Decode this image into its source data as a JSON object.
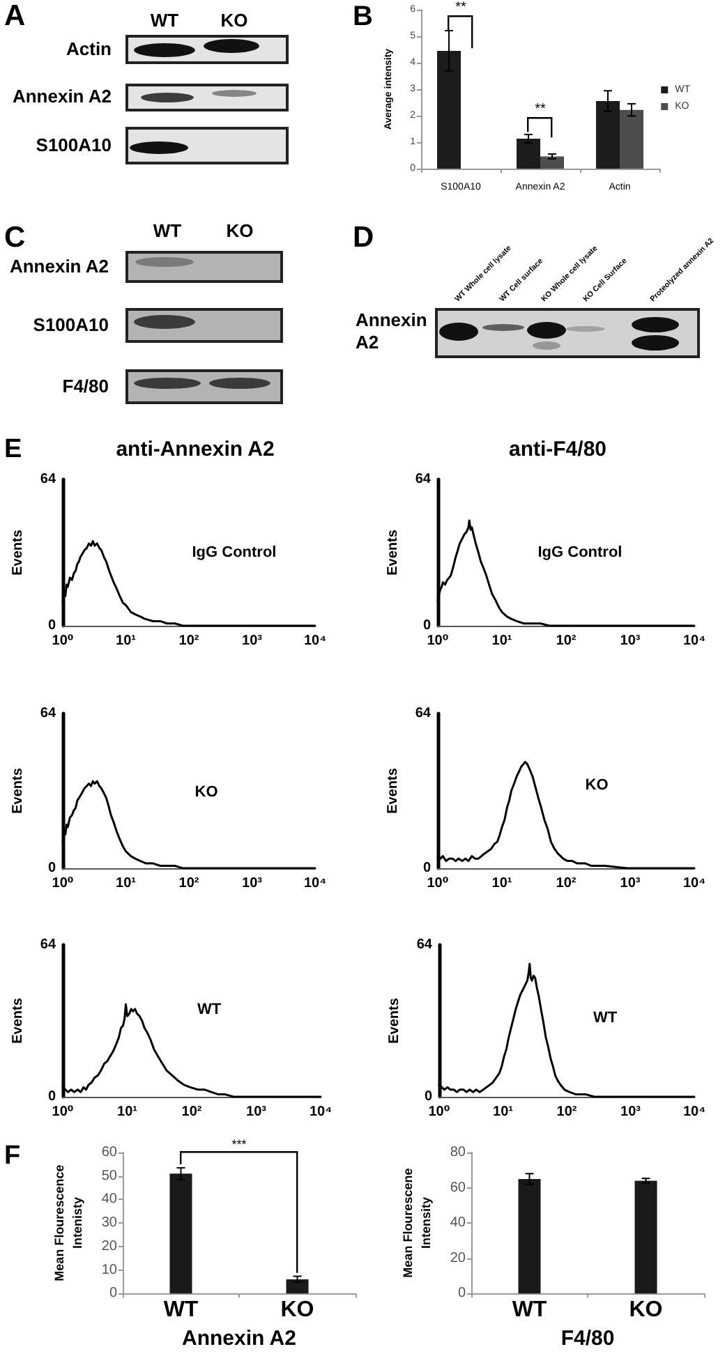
{
  "chart_data": [
    {
      "type": "other",
      "title": "A",
      "categories": [
        "WT",
        "KO"
      ],
      "y_categories": [
        "Actin",
        "Annexin A2",
        "S100A10"
      ]
    },
    {
      "type": "bar",
      "title": "B",
      "categories": [
        "S100A10",
        "Annexin A2",
        "Actin"
      ],
      "ylabel": "Average intensity",
      "ylim": [
        0,
        6
      ],
      "yticks": [
        0,
        1,
        2,
        3,
        4,
        5,
        6
      ],
      "legend": "right",
      "series": [
        {
          "name": "WT",
          "color": "#1c1c1c",
          "values": [
            4.45,
            1.13,
            2.55
          ],
          "errors": [
            0.76,
            0.16,
            0.39
          ]
        },
        {
          "name": "KO",
          "color": "#4d4d4d",
          "values": [
            0,
            0.46,
            2.22
          ],
          "errors": [
            null,
            0.09,
            0.23
          ]
        }
      ],
      "annotations": [
        "**",
        "**"
      ]
    },
    {
      "type": "other",
      "title": "C",
      "categories": [
        "WT",
        "KO"
      ],
      "y_categories": [
        "Annexin A2",
        "S100A10",
        "F4/80"
      ]
    },
    {
      "type": "other",
      "title": "D",
      "categories": [
        "WT Whole cell lysate",
        "WT Cell surface",
        "KO Whole cell lysate",
        "KO Cell Surface",
        "Proteolyzed annexin A2"
      ],
      "y_categories": [
        "Annexin A2"
      ]
    },
    {
      "type": "line",
      "title": "E",
      "subtitle": "anti-Annexin A2",
      "ylabel": "Events",
      "log": "x",
      "xlim": [
        1,
        10000
      ],
      "xticks": [
        {
          "value": 1,
          "label": "10⁰"
        },
        {
          "value": 10,
          "label": "10¹"
        },
        {
          "value": 100,
          "label": "10²"
        },
        {
          "value": 1000,
          "label": "10³"
        },
        {
          "value": 10000,
          "label": "10⁴"
        }
      ],
      "ylim": [
        0,
        64
      ],
      "yticks": [
        0,
        64
      ],
      "color": "#000000",
      "x": [
        1,
        1.05,
        1.1,
        1.15,
        1.2,
        1.3,
        1.4,
        1.5,
        1.6,
        1.7,
        1.8,
        1.9,
        2.0,
        2.2,
        2.4,
        2.6,
        2.8,
        3.0,
        3.2,
        3.5,
        3.8,
        4.1,
        4.5,
        4.9,
        5.3,
        5.8,
        6.4,
        7.2,
        8,
        9,
        10,
        12,
        14,
        17,
        20,
        27,
        35,
        45,
        60,
        80,
        1000,
        10000
      ],
      "values": [
        11,
        15,
        13,
        18,
        17,
        21,
        20,
        23,
        24,
        27,
        28,
        30,
        31,
        33,
        34,
        36,
        35,
        37,
        35,
        36,
        34,
        33,
        30,
        28,
        25,
        22,
        19,
        16,
        13,
        10,
        9,
        6,
        5,
        4,
        3,
        2,
        2,
        1,
        1,
        0,
        0,
        0
      ],
      "annotations": [
        "IgG Control"
      ]
    },
    {
      "type": "line",
      "subtitle": "anti-F4/80",
      "ylabel": "Events",
      "log": "x",
      "xlim": [
        1,
        10000
      ],
      "xticks": [
        {
          "value": 1,
          "label": "10⁰"
        },
        {
          "value": 10,
          "label": "10¹"
        },
        {
          "value": 100,
          "label": "10²"
        },
        {
          "value": 1000,
          "label": "10³"
        },
        {
          "value": 10000,
          "label": "10⁴"
        }
      ],
      "ylim": [
        0,
        64
      ],
      "yticks": [
        0,
        64
      ],
      "color": "#000000",
      "x": [
        1,
        1.05,
        1.1,
        1.15,
        1.2,
        1.3,
        1.4,
        1.5,
        1.6,
        1.75,
        1.9,
        2.05,
        2.2,
        2.4,
        2.6,
        2.8,
        3.0,
        3.1,
        3.25,
        3.4,
        3.6,
        3.9,
        4.3,
        4.7,
        5.2,
        5.7,
        6.3,
        7,
        8,
        9,
        10,
        12,
        14,
        17,
        22,
        30,
        40,
        55,
        75,
        100,
        1000,
        10000
      ],
      "values": [
        11,
        14,
        16,
        17,
        19,
        18,
        20,
        21,
        22,
        26,
        30,
        33,
        36,
        38,
        40,
        41,
        43,
        46,
        42,
        43,
        40,
        36,
        32,
        28,
        25,
        22,
        18,
        14,
        11,
        8,
        6,
        4,
        3,
        2,
        1,
        1,
        1,
        0,
        0,
        0,
        0,
        0
      ],
      "annotations": [
        "IgG Control"
      ]
    },
    {
      "type": "line",
      "ylabel": "Events",
      "log": "x",
      "xlim": [
        1,
        10000
      ],
      "xticks": [
        {
          "value": 1,
          "label": "10⁰"
        },
        {
          "value": 10,
          "label": "10¹"
        },
        {
          "value": 100,
          "label": "10²"
        },
        {
          "value": 1000,
          "label": "10³"
        },
        {
          "value": 10000,
          "label": "10⁴"
        }
      ],
      "ylim": [
        0,
        64
      ],
      "yticks": [
        0,
        64
      ],
      "color": "#000000",
      "x": [
        1,
        1.05,
        1.1,
        1.15,
        1.2,
        1.3,
        1.4,
        1.5,
        1.6,
        1.7,
        1.8,
        1.9,
        2.0,
        2.2,
        2.4,
        2.6,
        2.8,
        3.0,
        3.2,
        3.5,
        3.8,
        4.1,
        4.5,
        4.9,
        5.3,
        5.8,
        6.4,
        7.2,
        8,
        9,
        10,
        12,
        14,
        17,
        21,
        27,
        35,
        45,
        60,
        80,
        1000,
        10000
      ],
      "values": [
        11,
        16,
        14,
        18,
        17,
        21,
        22,
        24,
        25,
        28,
        29,
        30,
        31,
        33,
        34,
        35,
        34,
        36,
        35,
        36,
        34,
        33,
        31,
        29,
        26,
        22,
        19,
        15,
        12,
        9,
        7,
        5,
        4,
        3,
        2,
        2,
        1,
        1,
        1,
        0,
        0,
        0
      ],
      "annotations": [
        "KO"
      ]
    },
    {
      "type": "line",
      "ylabel": "Events",
      "log": "x",
      "xlim": [
        1,
        10000
      ],
      "xticks": [
        {
          "value": 1,
          "label": "10⁰"
        },
        {
          "value": 10,
          "label": "10¹"
        },
        {
          "value": 100,
          "label": "10²"
        },
        {
          "value": 1000,
          "label": "10³"
        },
        {
          "value": 10000,
          "label": "10⁴"
        }
      ],
      "ylim": [
        0,
        64
      ],
      "yticks": [
        0,
        64
      ],
      "color": "#000000",
      "x": [
        1,
        1.1,
        1.2,
        1.35,
        1.5,
        1.7,
        1.9,
        2.1,
        2.4,
        2.7,
        3,
        3.4,
        3.8,
        4.3,
        4.8,
        5.3,
        6,
        6.8,
        7.6,
        8.5,
        9.3,
        10,
        11,
        12,
        13,
        14,
        15.5,
        17,
        18.5,
        20,
        21.5,
        23,
        25,
        27,
        30,
        33,
        37,
        41,
        46,
        52,
        58,
        66,
        75,
        90,
        105,
        125,
        150,
        200,
        250,
        400,
        900,
        10000
      ],
      "values": [
        5,
        4,
        5,
        3,
        4,
        4,
        3,
        4,
        3,
        4,
        3,
        5,
        4,
        4,
        5,
        6,
        7,
        8,
        10,
        11,
        14,
        17,
        20,
        25,
        28,
        32,
        35,
        38,
        40,
        42,
        43,
        44,
        43,
        41,
        38,
        34,
        29,
        25,
        20,
        16,
        11,
        8,
        6,
        4,
        3,
        3,
        2,
        2,
        1,
        1,
        0,
        0
      ],
      "annotations": [
        "KO"
      ]
    },
    {
      "type": "line",
      "ylabel": "Events",
      "log": "x",
      "xlim": [
        1,
        10000
      ],
      "xticks": [
        {
          "value": 1,
          "label": "10⁰"
        },
        {
          "value": 10,
          "label": "10¹"
        },
        {
          "value": 100,
          "label": "10²"
        },
        {
          "value": 1000,
          "label": "10³"
        },
        {
          "value": 10000,
          "label": "10⁴"
        }
      ],
      "ylim": [
        0,
        64
      ],
      "yticks": [
        0,
        64
      ],
      "color": "#000000",
      "x": [
        1,
        1.1,
        1.2,
        1.35,
        1.5,
        1.7,
        1.9,
        2.1,
        2.3,
        2.5,
        2.8,
        3.1,
        3.5,
        3.9,
        4.4,
        4.9,
        5.4,
        6,
        6.7,
        7.4,
        8,
        8.6,
        9.1,
        9.5,
        10,
        10.8,
        11.5,
        12.3,
        13.2,
        14.2,
        15.5,
        17,
        18.5,
        20.5,
        23,
        26,
        30,
        35,
        41,
        50,
        60,
        76,
        95,
        125,
        160,
        200,
        260,
        330,
        450,
        740,
        10000
      ],
      "values": [
        4,
        3,
        2,
        3,
        2,
        3,
        2,
        4,
        3,
        5,
        6,
        8,
        9,
        11,
        14,
        15,
        17,
        19,
        22,
        25,
        29,
        30,
        33,
        39,
        34,
        35,
        37,
        36,
        37,
        35,
        34,
        32,
        29,
        27,
        24,
        20,
        17,
        14,
        11,
        9,
        7,
        5,
        4,
        3,
        3,
        2,
        1,
        1,
        0,
        0,
        0
      ],
      "annotations": [
        "WT"
      ]
    },
    {
      "type": "line",
      "ylabel": "Events",
      "log": "x",
      "xlim": [
        1,
        10000
      ],
      "xticks": [
        {
          "value": 1,
          "label": "10⁰"
        },
        {
          "value": 10,
          "label": "10¹"
        },
        {
          "value": 100,
          "label": "10²"
        },
        {
          "value": 1000,
          "label": "10³"
        },
        {
          "value": 10000,
          "label": "10⁴"
        }
      ],
      "ylim": [
        0,
        64
      ],
      "yticks": [
        0,
        64
      ],
      "color": "#000000",
      "x": [
        1,
        1.1,
        1.2,
        1.35,
        1.5,
        1.7,
        1.9,
        2.1,
        2.4,
        2.7,
        3,
        3.4,
        3.8,
        4.3,
        4.9,
        5.5,
        6.2,
        6.9,
        7.8,
        8.8,
        9.6,
        10.4,
        11.3,
        12.3,
        13.4,
        14.6,
        15.9,
        17.2,
        18.7,
        20.4,
        22.2,
        24.1,
        25.2,
        26.2,
        27.3,
        28.5,
        30.2,
        32,
        34,
        36.6,
        40,
        43.3,
        47,
        51.2,
        56,
        60.5,
        66,
        71.6,
        80,
        92,
        110,
        140,
        200,
        273,
        10000
      ],
      "values": [
        5,
        4,
        3,
        4,
        3,
        3,
        2,
        3,
        3,
        2,
        3,
        2,
        3,
        2,
        3,
        4,
        5,
        6,
        8,
        10,
        13,
        17,
        20,
        25,
        29,
        33,
        37,
        40,
        43,
        45,
        47,
        49,
        52,
        56,
        50,
        49,
        51,
        50,
        46,
        42,
        36,
        31,
        25,
        21,
        16,
        13,
        9,
        7,
        5,
        3,
        2,
        1,
        1,
        0,
        0
      ],
      "annotations": [
        "WT"
      ]
    },
    {
      "type": "bar",
      "title": "F",
      "categories": [
        "WT",
        "KO"
      ],
      "values": [
        51,
        6
      ],
      "errors": [
        2.5,
        1.3
      ],
      "color": "#1a1a1a",
      "ylabel": "Mean Flourescence Intenisty",
      "xlabel": "Annexin A2",
      "ylim": [
        0,
        60
      ],
      "yticks": [
        0,
        10,
        20,
        30,
        40,
        50,
        60
      ],
      "annotations": [
        "***"
      ]
    },
    {
      "type": "bar",
      "categories": [
        "WT",
        "KO"
      ],
      "values": [
        65,
        64
      ],
      "errors": [
        3,
        1.3
      ],
      "color": "#1a1a1a",
      "ylabel": "Mean Flourescene Intensity",
      "xlabel": "F4/80",
      "ylim": [
        0,
        80
      ],
      "yticks": [
        0,
        20,
        40,
        60,
        80
      ]
    }
  ]
}
